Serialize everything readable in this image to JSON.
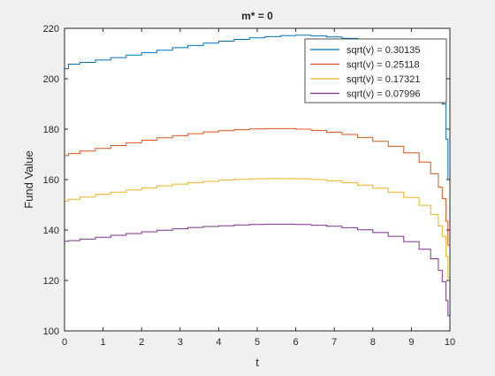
{
  "chart_data": {
    "type": "line",
    "title": "m* = 0",
    "xlabel": "t",
    "ylabel": "Fund Value",
    "xlim": [
      0,
      10
    ],
    "ylim": [
      100,
      220
    ],
    "x_ticks": [
      0,
      1,
      2,
      3,
      4,
      5,
      6,
      7,
      8,
      9,
      10
    ],
    "x_tick_labels": [
      "0",
      "1",
      "2",
      "3",
      "4",
      "5",
      "6",
      "7",
      "8",
      "9",
      "10"
    ],
    "y_ticks": [
      100,
      120,
      140,
      160,
      180,
      200,
      220
    ],
    "y_tick_labels": [
      "100",
      "120",
      "140",
      "160",
      "180",
      "200",
      "220"
    ],
    "grid": false,
    "legend_position": "top-right",
    "series": [
      {
        "name": "sqrt(v) = 0.30135",
        "color": "#0072BD",
        "x": [
          0,
          0.1,
          0.4,
          0.8,
          1.2,
          1.6,
          2.0,
          2.4,
          2.8,
          3.2,
          3.6,
          4.0,
          4.4,
          4.8,
          5.2,
          5.6,
          6.0,
          6.4,
          6.8,
          7.2,
          7.6,
          8.0,
          8.4,
          8.8,
          9.2,
          9.5,
          9.7,
          9.8,
          9.9,
          9.95,
          10
        ],
        "y": [
          204,
          205.8,
          206.5,
          207.4,
          208.4,
          209.4,
          210.4,
          211.3,
          212.3,
          213.2,
          214.1,
          214.9,
          215.6,
          216.2,
          216.7,
          217.1,
          217.3,
          217.0,
          216.6,
          216.0,
          215.0,
          213.7,
          211.9,
          209.3,
          205.2,
          200.7,
          196.0,
          190.0,
          176.0,
          160.0,
          103
        ]
      },
      {
        "name": "sqrt(v) = 0.25118",
        "color": "#D95319",
        "x": [
          0,
          0.1,
          0.4,
          0.8,
          1.2,
          1.6,
          2.0,
          2.4,
          2.8,
          3.2,
          3.6,
          4.0,
          4.4,
          4.8,
          5.2,
          5.6,
          6.0,
          6.4,
          6.8,
          7.2,
          7.6,
          8.0,
          8.4,
          8.8,
          9.2,
          9.5,
          9.7,
          9.8,
          9.9,
          9.95,
          10
        ],
        "y": [
          169.5,
          170.3,
          171.3,
          172.4,
          173.5,
          174.6,
          175.6,
          176.6,
          177.4,
          178.2,
          178.9,
          179.4,
          179.8,
          180.1,
          180.2,
          180.2,
          180.0,
          179.5,
          178.8,
          177.9,
          176.7,
          175.2,
          173.2,
          170.6,
          166.9,
          162.3,
          157.0,
          152.5,
          143.5,
          134.0,
          101
        ]
      },
      {
        "name": "sqrt(v) = 0.17321",
        "color": "#EDB120",
        "x": [
          0,
          0.1,
          0.4,
          0.8,
          1.2,
          1.6,
          2.0,
          2.4,
          2.8,
          3.2,
          3.6,
          4.0,
          4.4,
          4.8,
          5.2,
          5.6,
          6.0,
          6.4,
          6.8,
          7.2,
          7.6,
          8.0,
          8.4,
          8.8,
          9.2,
          9.5,
          9.7,
          9.8,
          9.9,
          9.95,
          10
        ],
        "y": [
          151.5,
          152.2,
          153.1,
          154.1,
          155.0,
          155.9,
          156.7,
          157.5,
          158.2,
          158.8,
          159.3,
          159.8,
          160.1,
          160.3,
          160.4,
          160.4,
          160.3,
          160.0,
          159.5,
          158.8,
          157.8,
          156.6,
          155.0,
          152.9,
          149.8,
          146.1,
          141.6,
          137.5,
          129.5,
          121.0,
          101
        ]
      },
      {
        "name": "sqrt(v) = 0.07996",
        "color": "#7E2F8E",
        "x": [
          0,
          0.1,
          0.4,
          0.8,
          1.2,
          1.6,
          2.0,
          2.4,
          2.8,
          3.2,
          3.6,
          4.0,
          4.4,
          4.8,
          5.2,
          5.6,
          6.0,
          6.4,
          6.8,
          7.2,
          7.6,
          8.0,
          8.4,
          8.8,
          9.2,
          9.5,
          9.7,
          9.8,
          9.9,
          9.95,
          10
        ],
        "y": [
          135.5,
          135.8,
          136.4,
          137.1,
          137.9,
          138.6,
          139.3,
          139.9,
          140.5,
          141.0,
          141.4,
          141.7,
          142.0,
          142.2,
          142.3,
          142.3,
          142.2,
          141.9,
          141.5,
          140.9,
          140.1,
          139.0,
          137.5,
          135.4,
          132.4,
          128.6,
          124.0,
          119.5,
          112.0,
          106.0,
          101
        ]
      }
    ]
  }
}
